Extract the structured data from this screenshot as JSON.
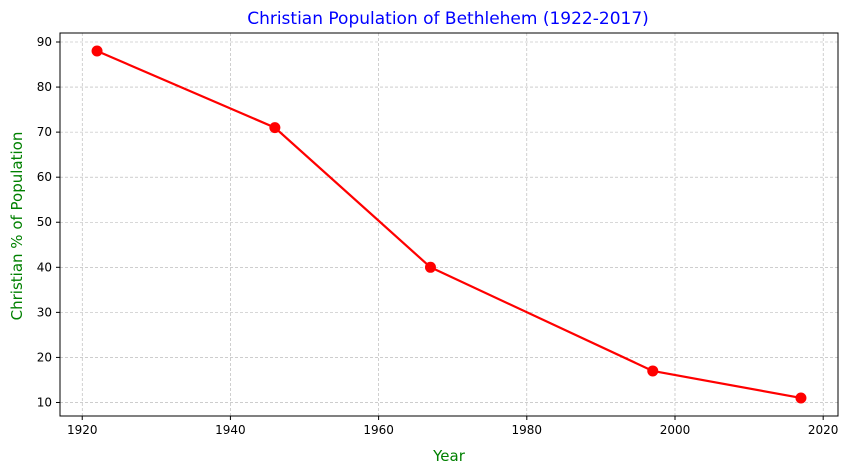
{
  "chart_data": {
    "type": "line",
    "title": "Christian Population of Bethlehem (1922-2017)",
    "xlabel": "Year",
    "ylabel": "Christian % of Population",
    "x": [
      1922,
      1946,
      1967,
      1997,
      2017
    ],
    "series": [
      {
        "values": [
          88,
          71,
          40,
          17,
          11
        ]
      }
    ],
    "xlim": [
      1917,
      2022
    ],
    "ylim": [
      7,
      92
    ],
    "xticks": [
      1920,
      1940,
      1960,
      1980,
      2000,
      2020
    ],
    "yticks": [
      10,
      20,
      30,
      40,
      50,
      60,
      70,
      80,
      90
    ],
    "grid": true,
    "marker": "circle"
  },
  "colors": {
    "line": "#ff0000",
    "marker": "#ff0000",
    "title": "#0000ff",
    "axis_labels": "#008000",
    "grid": "#b0b0b0"
  }
}
